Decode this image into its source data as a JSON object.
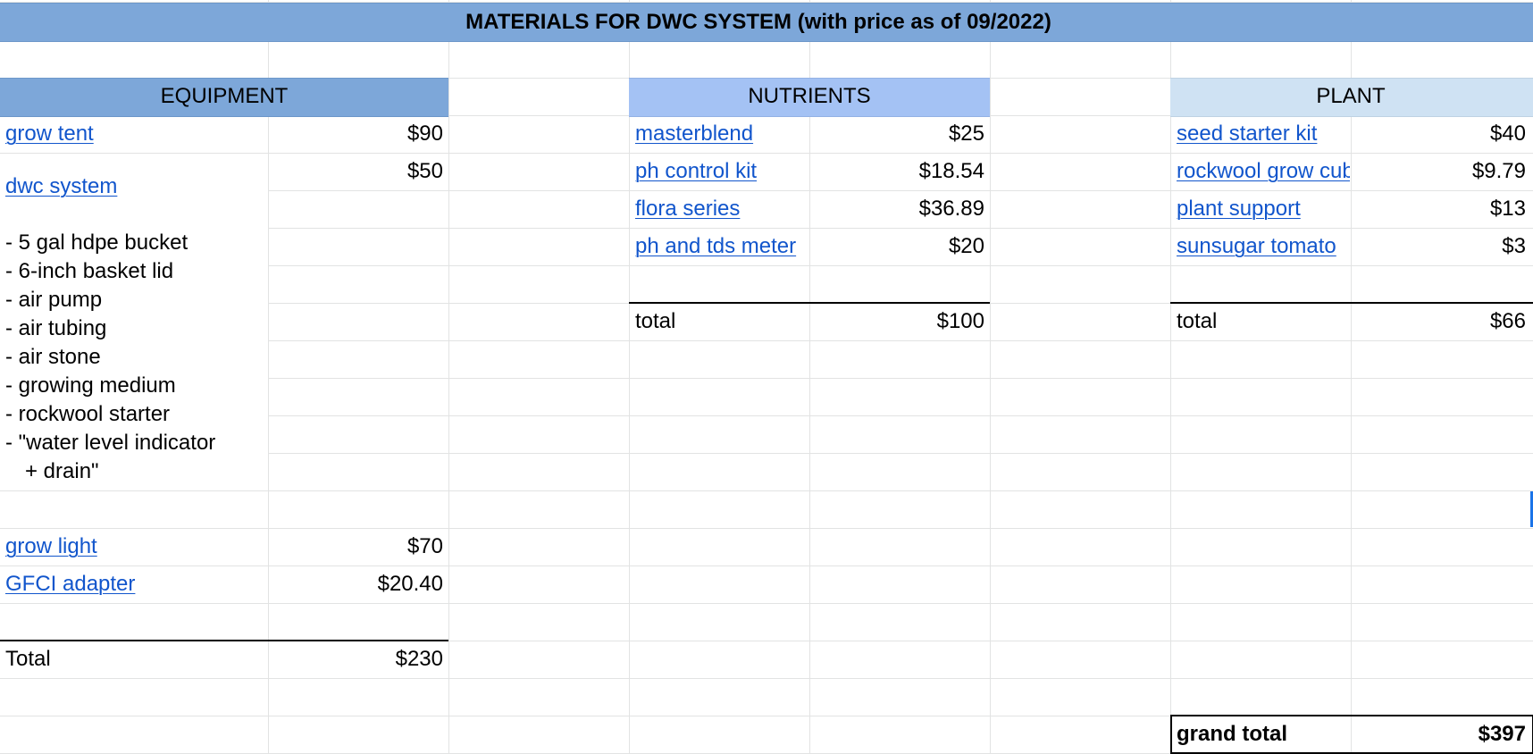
{
  "title": "MATERIALS FOR DWC SYSTEM (with price as of 09/2022)",
  "colors": {
    "title_fill": "#7da7d9",
    "equipment_fill": "#7da7d9",
    "nutrients_fill": "#a4c2f4",
    "plant_fill": "#cfe2f3",
    "link": "#1155cc",
    "gridline": "#e2e3e3"
  },
  "equipment": {
    "header": "EQUIPMENT",
    "items": [
      {
        "name": "grow tent",
        "price": "$90"
      },
      {
        "name": "dwc system",
        "price": "$50"
      },
      {
        "name": "grow light",
        "price": "$70"
      },
      {
        "name": "GFCI adapter",
        "price": "$20.40"
      }
    ],
    "dwc_components": [
      "- 5 gal hdpe bucket",
      "- 6-inch basket lid",
      "- air pump",
      "- air tubing",
      "- air stone",
      "- growing medium",
      "- rockwool starter",
      "- \"water level indicator",
      "+ drain\""
    ],
    "total_label": "Total",
    "total_value": "$230"
  },
  "nutrients": {
    "header": "NUTRIENTS",
    "items": [
      {
        "name": "masterblend",
        "price": "$25"
      },
      {
        "name": "ph control kit",
        "price": "$18.54"
      },
      {
        "name": "flora series",
        "price": "$36.89"
      },
      {
        "name": "ph and tds meter",
        "price": "$20"
      }
    ],
    "total_label": "total",
    "total_value": "$100"
  },
  "plant": {
    "header": "PLANT",
    "items": [
      {
        "name": "seed starter kit",
        "price": "$40"
      },
      {
        "name": "rockwool grow cubes",
        "price": "$9.79"
      },
      {
        "name": "plant support",
        "price": "$13"
      },
      {
        "name": "sunsugar tomato",
        "price": "$3"
      }
    ],
    "total_label": "total",
    "total_value": "$66"
  },
  "grand_total": {
    "label": "grand total",
    "value": "$397"
  }
}
